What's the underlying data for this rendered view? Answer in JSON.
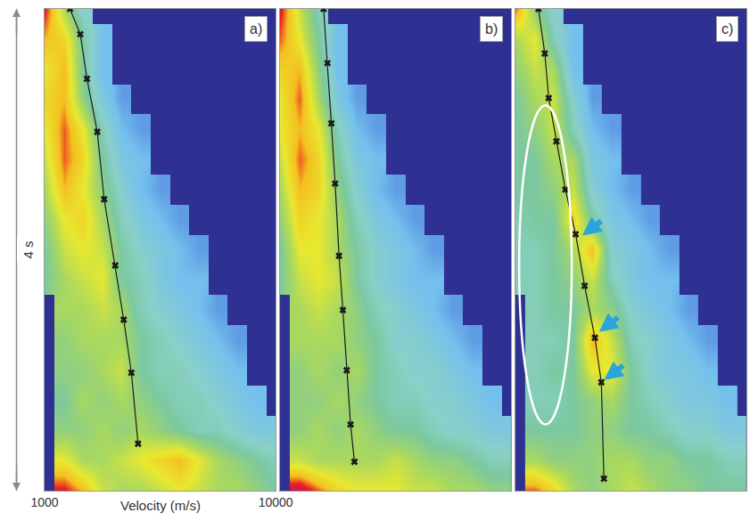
{
  "chart_data": {
    "type": "heatmap",
    "x_label": "Velocity (m/s)",
    "y_label": "4 s",
    "xlim": [
      1000,
      10000
    ],
    "xticks": [
      1000,
      10000
    ],
    "ylim": [
      4,
      0
    ],
    "tick_labels": "x",
    "zlim": [
      0,
      1
    ],
    "x": [
      1000,
      1750,
      2500,
      3250,
      4000,
      4750,
      5500,
      6250,
      7000,
      7750,
      8500,
      9250,
      10000
    ],
    "y": [
      0,
      0.25,
      0.5,
      0.75,
      1,
      1.25,
      1.5,
      1.75,
      2,
      2.25,
      2.5,
      2.75,
      3,
      3.25,
      3.5,
      3.75,
      4
    ],
    "panels": [
      {
        "label": "a)",
        "cells": [
          [
            0.9,
            0.6,
            0.4,
            null,
            null,
            null,
            null,
            null,
            null,
            null,
            null,
            null,
            null
          ],
          [
            0.8,
            0.75,
            0.5,
            0.3,
            null,
            null,
            null,
            null,
            null,
            null,
            null,
            null,
            null
          ],
          [
            0.7,
            0.8,
            0.5,
            0.3,
            null,
            null,
            null,
            null,
            null,
            null,
            null,
            null,
            null
          ],
          [
            0.75,
            0.8,
            0.55,
            0.35,
            0.25,
            null,
            null,
            null,
            null,
            null,
            null,
            null,
            null
          ],
          [
            0.7,
            0.85,
            0.7,
            0.45,
            0.3,
            0.25,
            null,
            null,
            null,
            null,
            null,
            null,
            null
          ],
          [
            0.65,
            0.85,
            0.75,
            0.5,
            0.35,
            0.3,
            null,
            null,
            null,
            null,
            null,
            null,
            null
          ],
          [
            0.6,
            0.8,
            0.7,
            0.55,
            0.4,
            0.3,
            0.25,
            null,
            null,
            null,
            null,
            null,
            null
          ],
          [
            0.55,
            0.7,
            0.75,
            0.6,
            0.45,
            0.35,
            0.3,
            0.25,
            null,
            null,
            null,
            null,
            null
          ],
          [
            0.5,
            0.65,
            0.7,
            0.65,
            0.5,
            0.4,
            0.35,
            0.3,
            0.25,
            null,
            null,
            null,
            null
          ],
          [
            0.5,
            0.6,
            0.65,
            0.7,
            0.5,
            0.45,
            0.35,
            0.3,
            0.3,
            null,
            null,
            null,
            null
          ],
          [
            null,
            0.6,
            0.6,
            0.65,
            0.6,
            0.45,
            0.4,
            0.35,
            0.3,
            0.25,
            null,
            null,
            null
          ],
          [
            null,
            0.55,
            0.6,
            0.6,
            0.6,
            0.5,
            0.45,
            0.4,
            0.35,
            0.3,
            0.25,
            null,
            null
          ],
          [
            null,
            0.55,
            0.55,
            0.6,
            0.65,
            0.5,
            0.45,
            0.45,
            0.4,
            0.35,
            0.3,
            null,
            null
          ],
          [
            null,
            0.5,
            0.6,
            0.55,
            0.6,
            0.55,
            0.5,
            0.45,
            0.45,
            0.4,
            0.35,
            0.3,
            null
          ],
          [
            null,
            0.55,
            0.55,
            0.6,
            0.55,
            0.6,
            0.55,
            0.5,
            0.45,
            0.45,
            0.4,
            0.35,
            0.35
          ],
          [
            null,
            0.7,
            0.6,
            0.6,
            0.65,
            0.7,
            0.75,
            0.8,
            0.7,
            0.6,
            0.55,
            0.5,
            0.45
          ],
          [
            null,
            0.9,
            0.8,
            0.65,
            0.6,
            0.6,
            0.65,
            0.7,
            0.65,
            0.6,
            0.6,
            0.55,
            0.5
          ]
        ],
        "picks": {
          "color": "#1a1a1a",
          "marker": "x",
          "line_style": "solid",
          "time": [
            0,
            0.21,
            0.58,
            1.02,
            1.58,
            2.13,
            2.58,
            3.02,
            3.61
          ],
          "velocity": [
            1990,
            2390,
            2650,
            3050,
            3320,
            3750,
            4080,
            4380,
            4640
          ]
        }
      },
      {
        "label": "b)",
        "cells": [
          [
            0.9,
            0.65,
            0.45,
            null,
            null,
            null,
            null,
            null,
            null,
            null,
            null,
            null,
            null
          ],
          [
            0.85,
            0.7,
            0.5,
            0.3,
            null,
            null,
            null,
            null,
            null,
            null,
            null,
            null,
            null
          ],
          [
            0.75,
            0.8,
            0.55,
            0.3,
            null,
            null,
            null,
            null,
            null,
            null,
            null,
            null,
            null
          ],
          [
            0.7,
            0.85,
            0.6,
            0.35,
            0.25,
            null,
            null,
            null,
            null,
            null,
            null,
            null,
            null
          ],
          [
            0.7,
            0.8,
            0.7,
            0.45,
            0.3,
            0.25,
            null,
            null,
            null,
            null,
            null,
            null,
            null
          ],
          [
            0.65,
            0.85,
            0.75,
            0.5,
            0.35,
            0.3,
            null,
            null,
            null,
            null,
            null,
            null,
            null
          ],
          [
            0.6,
            0.8,
            0.75,
            0.55,
            0.4,
            0.3,
            0.25,
            null,
            null,
            null,
            null,
            null,
            null
          ],
          [
            0.55,
            0.75,
            0.7,
            0.6,
            0.45,
            0.35,
            0.3,
            0.25,
            null,
            null,
            null,
            null,
            null
          ],
          [
            0.5,
            0.7,
            0.7,
            0.6,
            0.5,
            0.4,
            0.35,
            0.3,
            0.25,
            null,
            null,
            null,
            null
          ],
          [
            0.5,
            0.65,
            0.7,
            0.65,
            0.5,
            0.4,
            0.35,
            0.3,
            0.3,
            null,
            null,
            null,
            null
          ],
          [
            null,
            0.6,
            0.65,
            0.6,
            0.55,
            0.45,
            0.4,
            0.35,
            0.3,
            0.25,
            null,
            null,
            null
          ],
          [
            null,
            0.6,
            0.6,
            0.6,
            0.55,
            0.5,
            0.4,
            0.4,
            0.35,
            0.3,
            0.25,
            null,
            null
          ],
          [
            null,
            0.55,
            0.6,
            0.55,
            0.6,
            0.5,
            0.45,
            0.4,
            0.4,
            0.35,
            0.3,
            null,
            null
          ],
          [
            null,
            0.55,
            0.55,
            0.6,
            0.55,
            0.5,
            0.45,
            0.45,
            0.4,
            0.4,
            0.35,
            0.3,
            null
          ],
          [
            null,
            0.55,
            0.6,
            0.55,
            0.6,
            0.55,
            0.5,
            0.5,
            0.45,
            0.4,
            0.4,
            0.35,
            0.35
          ],
          [
            null,
            0.65,
            0.6,
            0.6,
            0.6,
            0.6,
            0.65,
            0.6,
            0.55,
            0.55,
            0.5,
            0.45,
            0.45
          ],
          [
            null,
            0.95,
            0.85,
            0.75,
            0.7,
            0.7,
            0.7,
            0.65,
            0.65,
            0.6,
            0.6,
            0.55,
            0.55
          ]
        ],
        "picks": {
          "color": "#1a1a1a",
          "marker": "x",
          "line_style": "solid",
          "time": [
            0,
            0.45,
            0.95,
            1.45,
            2.05,
            2.5,
            3.0,
            3.45,
            3.76
          ],
          "velocity": [
            2700,
            2850,
            3000,
            3150,
            3300,
            3450,
            3600,
            3750,
            3900
          ]
        }
      },
      {
        "label": "c)",
        "cells": [
          [
            0.85,
            0.55,
            0.4,
            null,
            null,
            null,
            null,
            null,
            null,
            null,
            null,
            null,
            null
          ],
          [
            0.6,
            0.7,
            0.45,
            0.3,
            null,
            null,
            null,
            null,
            null,
            null,
            null,
            null,
            null
          ],
          [
            0.55,
            0.65,
            0.6,
            0.3,
            null,
            null,
            null,
            null,
            null,
            null,
            null,
            null,
            null
          ],
          [
            0.5,
            0.6,
            0.65,
            0.4,
            0.25,
            null,
            null,
            null,
            null,
            null,
            null,
            null,
            null
          ],
          [
            0.5,
            0.55,
            0.65,
            0.45,
            0.3,
            0.25,
            null,
            null,
            null,
            null,
            null,
            null,
            null
          ],
          [
            0.5,
            0.5,
            0.6,
            0.6,
            0.35,
            0.3,
            null,
            null,
            null,
            null,
            null,
            null,
            null
          ],
          [
            0.5,
            0.5,
            0.55,
            0.65,
            0.4,
            0.3,
            0.25,
            null,
            null,
            null,
            null,
            null,
            null
          ],
          [
            0.45,
            0.5,
            0.5,
            0.75,
            0.5,
            0.35,
            0.3,
            0.25,
            null,
            null,
            null,
            null,
            null
          ],
          [
            0.45,
            0.45,
            0.5,
            0.6,
            0.8,
            0.4,
            0.35,
            0.3,
            0.25,
            null,
            null,
            null,
            null
          ],
          [
            0.45,
            0.45,
            0.5,
            0.55,
            0.65,
            0.45,
            0.35,
            0.3,
            0.3,
            null,
            null,
            null,
            null
          ],
          [
            null,
            0.45,
            0.5,
            0.5,
            0.6,
            0.55,
            0.4,
            0.35,
            0.3,
            0.25,
            null,
            null,
            null
          ],
          [
            null,
            0.45,
            0.45,
            0.5,
            0.8,
            0.65,
            0.45,
            0.4,
            0.35,
            0.3,
            0.25,
            null,
            null
          ],
          [
            null,
            0.45,
            0.5,
            0.5,
            0.7,
            0.7,
            0.5,
            0.4,
            0.35,
            0.35,
            0.3,
            null,
            null
          ],
          [
            null,
            0.45,
            0.45,
            0.5,
            0.55,
            0.6,
            0.5,
            0.45,
            0.4,
            0.35,
            0.35,
            0.3,
            null
          ],
          [
            null,
            0.5,
            0.5,
            0.5,
            0.55,
            0.55,
            0.5,
            0.5,
            0.45,
            0.4,
            0.4,
            0.35,
            0.35
          ],
          [
            null,
            0.6,
            0.55,
            0.55,
            0.55,
            0.6,
            0.6,
            0.55,
            0.55,
            0.5,
            0.5,
            0.45,
            0.45
          ],
          [
            null,
            0.85,
            0.75,
            0.6,
            0.55,
            0.6,
            0.65,
            0.6,
            0.55,
            0.55,
            0.5,
            0.5,
            0.5
          ]
        ],
        "picks": {
          "color": "#1a1a1a",
          "marker": "x",
          "line_style": "solid",
          "time": [
            0,
            0.37,
            0.74,
            1.1,
            1.5,
            1.87,
            2.3,
            2.73,
            3.1,
            3.9
          ],
          "velocity": [
            1900,
            2150,
            2300,
            2600,
            2950,
            3350,
            3700,
            4100,
            4350,
            4450
          ]
        }
      }
    ]
  }
}
